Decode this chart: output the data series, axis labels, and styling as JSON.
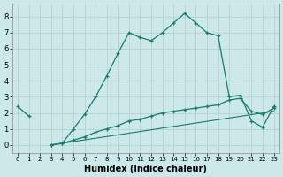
{
  "xlabel": "Humidex (Indice chaleur)",
  "background_color": "#cce8e8",
  "grid_color": "#b8d4d4",
  "line_color": "#1a7a6e",
  "xlim": [
    -0.5,
    23.5
  ],
  "ylim": [
    -0.5,
    8.8
  ],
  "yticks": [
    0,
    1,
    2,
    3,
    4,
    5,
    6,
    7,
    8
  ],
  "xticks": [
    0,
    1,
    2,
    3,
    4,
    5,
    6,
    7,
    8,
    9,
    10,
    11,
    12,
    13,
    14,
    15,
    16,
    17,
    18,
    19,
    20,
    21,
    22,
    23
  ],
  "curve1_x": [
    0,
    1,
    3,
    4,
    5,
    6,
    7,
    8,
    9,
    10,
    11,
    12,
    13,
    14,
    15,
    16,
    17,
    18,
    19,
    20,
    21,
    22,
    23
  ],
  "curve1_y": [
    2.4,
    1.8,
    0.0,
    0.1,
    1.0,
    1.9,
    3.0,
    4.3,
    5.7,
    7.0,
    6.7,
    6.5,
    7.0,
    7.6,
    8.2,
    7.6,
    7.0,
    6.8,
    3.0,
    3.1,
    1.5,
    1.1,
    2.4
  ],
  "curve2_x": [
    3,
    4,
    5,
    6,
    7,
    8,
    9,
    10,
    11,
    12,
    13,
    14,
    15,
    16,
    17,
    18,
    19,
    20,
    21,
    22,
    23
  ],
  "curve2_y": [
    0.0,
    0.1,
    0.3,
    0.5,
    0.8,
    1.0,
    1.2,
    1.5,
    1.6,
    1.8,
    2.0,
    2.1,
    2.2,
    2.3,
    2.4,
    2.5,
    2.8,
    2.9,
    2.1,
    1.9,
    2.3
  ],
  "curve3_x": [
    3,
    23
  ],
  "curve3_y": [
    0.0,
    2.1
  ]
}
